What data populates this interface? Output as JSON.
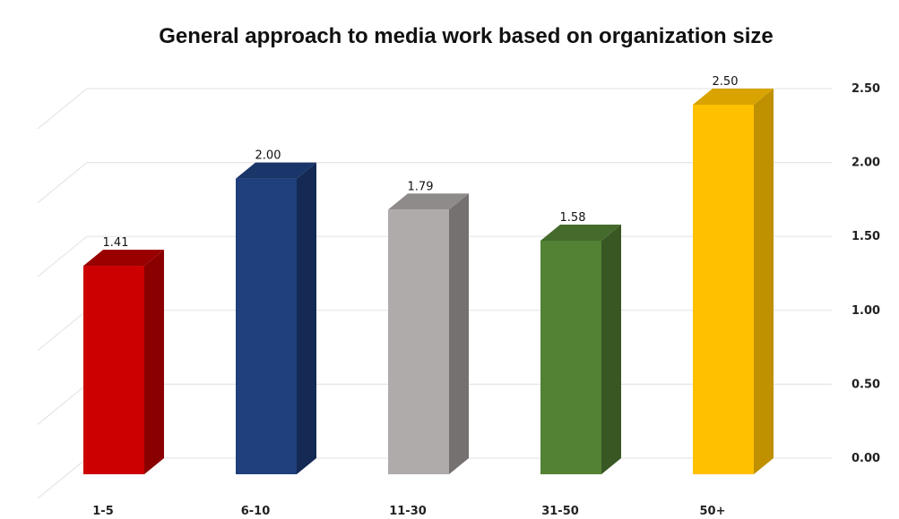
{
  "chart_data": {
    "type": "bar",
    "title": "General approach to media work based on organization size",
    "categories": [
      "1-5",
      "6-10",
      "11-30",
      "31-50",
      "50+"
    ],
    "values": [
      1.41,
      2.0,
      1.79,
      1.58,
      2.5
    ],
    "data_labels": [
      "1.41",
      "2.00",
      "1.79",
      "1.58",
      "2.50"
    ],
    "y_ticks": [
      "0.00",
      "0.50",
      "1.00",
      "1.50",
      "2.00",
      "2.50"
    ],
    "ylim": [
      0,
      2.5
    ],
    "y_axis_position": "right",
    "grid": true,
    "legend": "none",
    "style": "3d-bars",
    "colors": [
      {
        "front": "#cc0000",
        "side": "#8a0000",
        "top": "#990000"
      },
      {
        "front": "#1f3f7d",
        "side": "#142a55",
        "top": "#1a356a"
      },
      {
        "front": "#afabab",
        "side": "#767171",
        "top": "#8f8b8b"
      },
      {
        "front": "#548235",
        "side": "#385723",
        "top": "#446b2b"
      },
      {
        "front": "#ffc000",
        "side": "#bf9000",
        "top": "#d9a300"
      }
    ]
  }
}
